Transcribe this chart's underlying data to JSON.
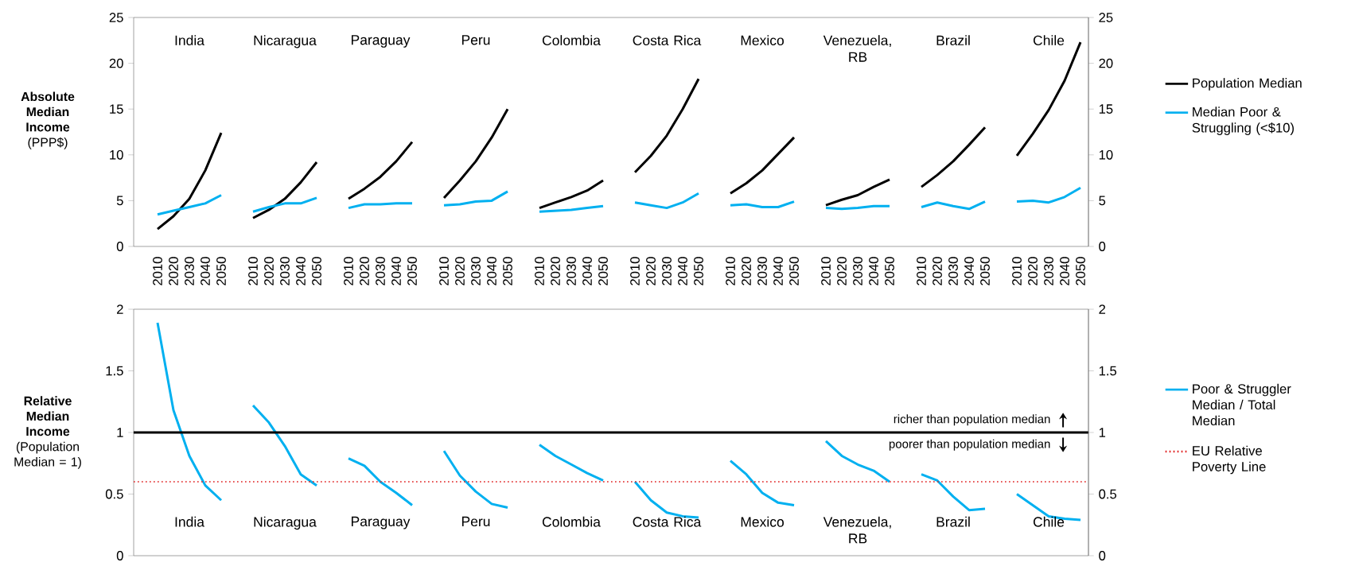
{
  "chart_data": [
    {
      "type": "line",
      "ylabel": "**Absolute Median Income** (PPP$)",
      "categories": [
        "2010",
        "2020",
        "2030",
        "2040",
        "2050",
        null,
        "2010",
        "2020",
        "2030",
        "2040",
        "2050",
        null,
        "2010",
        "2020",
        "2030",
        "2040",
        "2050",
        null,
        "2010",
        "2020",
        "2030",
        "2040",
        "2050",
        null,
        "2010",
        "2020",
        "2030",
        "2040",
        "2050",
        null,
        "2010",
        "2020",
        "2030",
        "2040",
        "2050",
        null,
        "2010",
        "2020",
        "2030",
        "2040",
        "2050",
        null,
        "2010",
        "2020",
        "2030",
        "2040",
        "2050",
        null,
        "2010",
        "2020",
        "2030",
        "2040",
        "2050",
        null,
        "2010",
        "2020",
        "2030",
        "2040",
        "2050"
      ],
      "series": [
        {
          "name": "Population Median",
          "color": "#000000",
          "values": [
            1.9,
            3.3,
            5.2,
            8.3,
            12.4,
            null,
            3.1,
            4.0,
            5.2,
            7.0,
            9.2,
            null,
            5.2,
            6.3,
            7.6,
            9.3,
            11.4,
            null,
            5.3,
            7.2,
            9.3,
            11.9,
            15.0,
            null,
            4.2,
            4.8,
            5.4,
            6.1,
            7.2,
            null,
            8.1,
            9.9,
            12.1,
            15.0,
            18.3,
            null,
            5.8,
            6.9,
            8.3,
            10.1,
            11.9,
            null,
            4.5,
            5.1,
            5.6,
            6.5,
            7.3,
            null,
            6.5,
            7.8,
            9.3,
            11.1,
            13.0,
            null,
            9.9,
            12.3,
            14.9,
            18.1,
            22.3
          ]
        },
        {
          "name": "Median Poor & Struggling (<$10)",
          "color": "#00b0f0",
          "values": [
            3.5,
            3.9,
            4.3,
            4.7,
            5.6,
            null,
            3.8,
            4.3,
            4.7,
            4.7,
            5.3,
            null,
            4.2,
            4.6,
            4.6,
            4.7,
            4.7,
            null,
            4.5,
            4.6,
            4.9,
            5.0,
            6.0,
            null,
            3.8,
            3.9,
            4.0,
            4.2,
            4.4,
            null,
            4.8,
            4.5,
            4.2,
            4.8,
            5.8,
            null,
            4.5,
            4.6,
            4.3,
            4.3,
            4.9,
            null,
            4.2,
            4.1,
            4.2,
            4.4,
            4.4,
            null,
            4.3,
            4.8,
            4.4,
            4.1,
            4.9,
            null,
            4.9,
            5.0,
            4.8,
            5.4,
            6.4
          ]
        }
      ],
      "ylim": [
        0,
        25
      ],
      "yticks": [
        0,
        5,
        10,
        15,
        20,
        25
      ],
      "y2lim": [
        0,
        25
      ],
      "y2ticks": [
        0,
        5,
        10,
        15,
        20,
        25
      ],
      "legend": "right",
      "annotations": [
        "India",
        "Nicaragua",
        "Paraguay",
        "Peru",
        "Colombia",
        "Costa Rica",
        "Mexico",
        "Venezuela, RB",
        "Brazil",
        "Chile"
      ]
    },
    {
      "type": "line",
      "ylabel": "**Relative Median Income** (Population Median = 1)",
      "categories": [
        "2010",
        "2020",
        "2030",
        "2040",
        "2050",
        null,
        "2010",
        "2020",
        "2030",
        "2040",
        "2050",
        null,
        "2010",
        "2020",
        "2030",
        "2040",
        "2050",
        null,
        "2010",
        "2020",
        "2030",
        "2040",
        "2050",
        null,
        "2010",
        "2020",
        "2030",
        "2040",
        "2050",
        null,
        "2010",
        "2020",
        "2030",
        "2040",
        "2050",
        null,
        "2010",
        "2020",
        "2030",
        "2040",
        "2050",
        null,
        "2010",
        "2020",
        "2030",
        "2040",
        "2050",
        null,
        "2010",
        "2020",
        "2030",
        "2040",
        "2050",
        null,
        "2010",
        "2020",
        "2030",
        "2040",
        "2050"
      ],
      "series": [
        {
          "name": "Poor & Struggler Median / Total Median",
          "color": "#00b0f0",
          "values": [
            1.89,
            1.18,
            0.81,
            0.57,
            0.45,
            null,
            1.22,
            1.08,
            0.89,
            0.66,
            0.57,
            null,
            0.79,
            0.73,
            0.6,
            0.51,
            0.41,
            null,
            0.85,
            0.65,
            0.52,
            0.42,
            0.39,
            null,
            0.9,
            0.81,
            0.74,
            0.67,
            0.61,
            null,
            0.6,
            0.45,
            0.35,
            0.32,
            0.31,
            null,
            0.77,
            0.66,
            0.51,
            0.43,
            0.41,
            null,
            0.93,
            0.81,
            0.74,
            0.69,
            0.6,
            null,
            0.66,
            0.61,
            0.48,
            0.37,
            0.38,
            null,
            0.5,
            0.41,
            0.32,
            0.3,
            0.29
          ]
        }
      ],
      "ylim": [
        0,
        2
      ],
      "yticks": [
        0,
        0.5,
        1,
        1.5,
        2
      ],
      "y2lim": [
        0,
        2
      ],
      "y2ticks": [
        0,
        0.5,
        1,
        1.5,
        2
      ],
      "tick_labels": "y",
      "legend": "right",
      "ref_lines": [
        {
          "axis": "y",
          "value": 1,
          "color": "#000000",
          "line_style": "solid"
        },
        {
          "axis": "y",
          "value": 0.6,
          "label": "EU Relative Poverty Line",
          "color": "#e02020",
          "line_style": "dotted"
        }
      ],
      "annotations": [
        "India",
        "Nicaragua",
        "Paraguay",
        "Peru",
        "Colombia",
        "Costa Rica",
        "Mexico",
        "Venezuela, RB",
        "Brazil",
        "Chile",
        {
          "text": "richer than population median",
          "y": 1
        },
        {
          "text": "poorer than population median",
          "y": 1
        }
      ]
    }
  ]
}
